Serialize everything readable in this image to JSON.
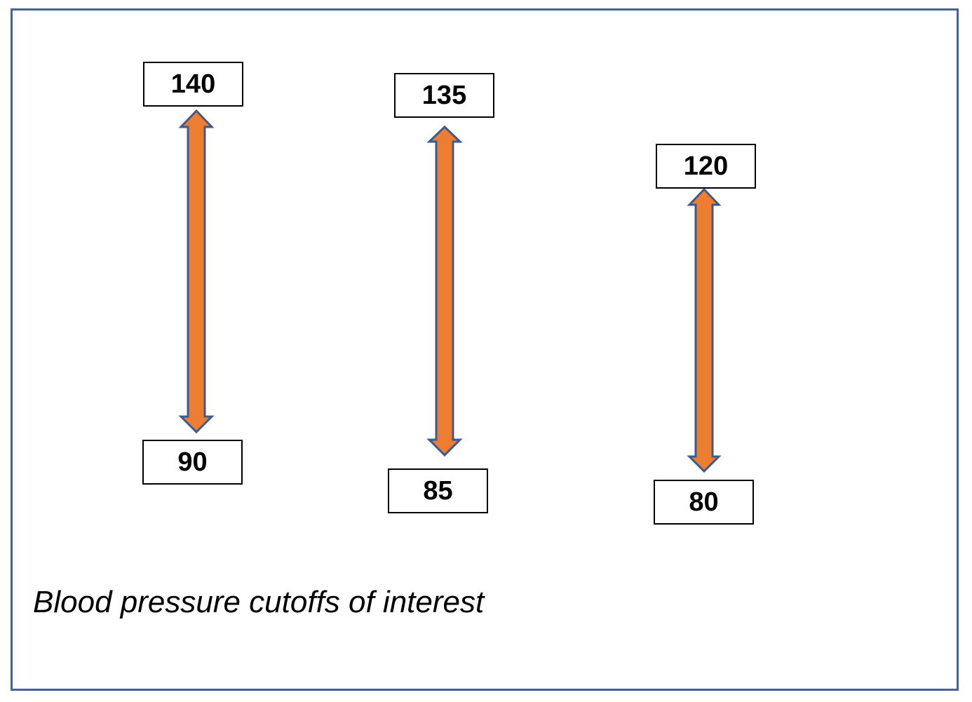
{
  "caption": "Blood pressure cutoffs of interest",
  "colors": {
    "frame_border": "#41659a",
    "arrow_fill": "#ed7d31",
    "arrow_stroke": "#3b5a8f",
    "box_border": "#000000"
  },
  "cutoffs": [
    {
      "systolic": "140",
      "diastolic": "90"
    },
    {
      "systolic": "135",
      "diastolic": "85"
    },
    {
      "systolic": "120",
      "diastolic": "80"
    }
  ]
}
